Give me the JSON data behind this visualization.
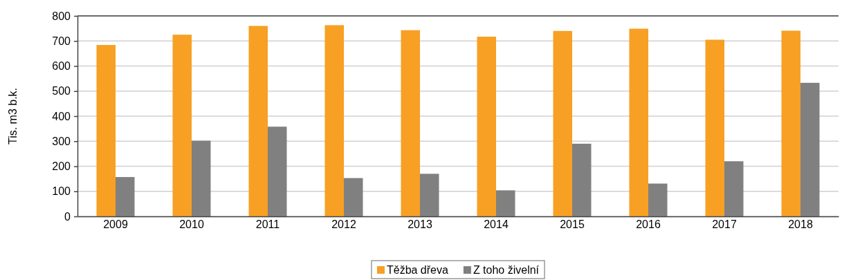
{
  "chart_data": {
    "type": "bar",
    "ylabel": "Tis. m3 b.k.",
    "categories": [
      "2009",
      "2010",
      "2011",
      "2012",
      "2013",
      "2014",
      "2015",
      "2016",
      "2017",
      "2018"
    ],
    "series": [
      {
        "name": "Těžba dřeva",
        "color": "#f7a024",
        "values": [
          684,
          725,
          760,
          763,
          743,
          717,
          740,
          749,
          705,
          741
        ]
      },
      {
        "name": "Z toho živelní",
        "color": "#808080",
        "values": [
          157,
          302,
          358,
          153,
          170,
          104,
          290,
          131,
          220,
          533
        ]
      }
    ],
    "ylim": [
      0,
      800
    ],
    "yticks": [
      0,
      100,
      200,
      300,
      400,
      500,
      600,
      700,
      800
    ],
    "grid": "y",
    "legend": "bottom"
  }
}
